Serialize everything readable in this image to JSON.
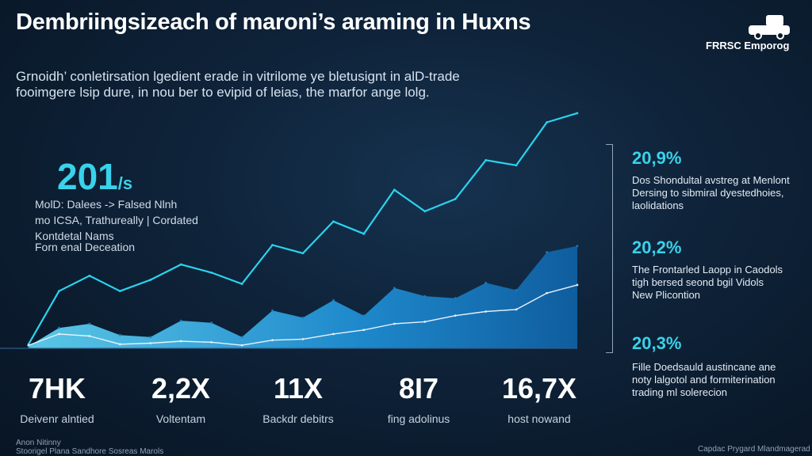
{
  "title": "Dembriingsizeach of maroni’s araming in Huxns",
  "brand": {
    "name": "FRRSC Emporog"
  },
  "subtitle_lines": [
    "Grnoidh’ conletirsation lgedient erade in vitrilome ye bletusignt in alD-trade",
    "fooimgere lsip dure, in nou ber to evipid of leias, the marfor ange lolg."
  ],
  "highlight": {
    "value": "201",
    "suffix": "/s",
    "lines": [
      "MolD: Dalees -> Falsed Nlnh",
      "mo ICSA, Trathureally | Cordated",
      "Kontdetal Nams",
      "Forn enal Deceation"
    ]
  },
  "bottom_stats": [
    {
      "value": "7HK",
      "label": "Deivenr alntied"
    },
    {
      "value": "2,2X",
      "label": "Voltentam"
    },
    {
      "value": "11X",
      "label": "Backdr debitrs"
    },
    {
      "value": "8I7",
      "label": "fing adolinus"
    },
    {
      "value": "16,7X",
      "label": "host nowand"
    }
  ],
  "right_stats": [
    {
      "value": "20,9%",
      "lines": [
        "Dos Shondultal avstreg at Menlont",
        "Dersing to sibmiral dyestedhoies,",
        "laolidations"
      ]
    },
    {
      "value": "20,2%",
      "lines": [
        "The Frontarled Laopp in Caodols",
        "tigh bersed seond bgil Vidols",
        "New Plicontion"
      ]
    },
    {
      "value": "20,3%",
      "lines": [
        "Fille Doedsauld austincane ane",
        "noty lalgotol and formiterination",
        "trading ml solerecion"
      ]
    }
  ],
  "footer_left": [
    "Anon Nitinny",
    "Stoorigel Plana Sandhore Sosreas Marols"
  ],
  "footer_right": "Capdac Prygard Mlandmagerad",
  "chart_data": {
    "type": "area",
    "x": [
      0,
      1,
      2,
      3,
      4,
      5,
      6,
      7,
      8,
      9,
      10,
      11,
      12,
      13,
      14,
      15,
      16,
      17,
      18
    ],
    "series": [
      {
        "values": [
          2,
          20,
          24,
          13,
          11,
          27,
          25,
          11,
          37,
          30,
          47,
          32,
          59,
          51,
          49,
          64,
          57,
          94,
          100
        ],
        "color": "#1b7fc4",
        "style": "area"
      },
      {
        "values": [
          4,
          56,
          71,
          56,
          67,
          82,
          74,
          63,
          101,
          93,
          124,
          112,
          155,
          134,
          146,
          184,
          179,
          221,
          230
        ],
        "color": "#2ad4ee",
        "style": "line"
      },
      {
        "values": [
          3,
          14,
          12,
          4,
          5,
          7,
          6,
          3,
          8,
          9,
          14,
          18,
          24,
          26,
          32,
          36,
          38,
          54,
          62
        ],
        "color": "#e8f2fb",
        "style": "line"
      }
    ],
    "ylim": [
      0,
      240
    ],
    "grid": false,
    "legend": "none"
  }
}
